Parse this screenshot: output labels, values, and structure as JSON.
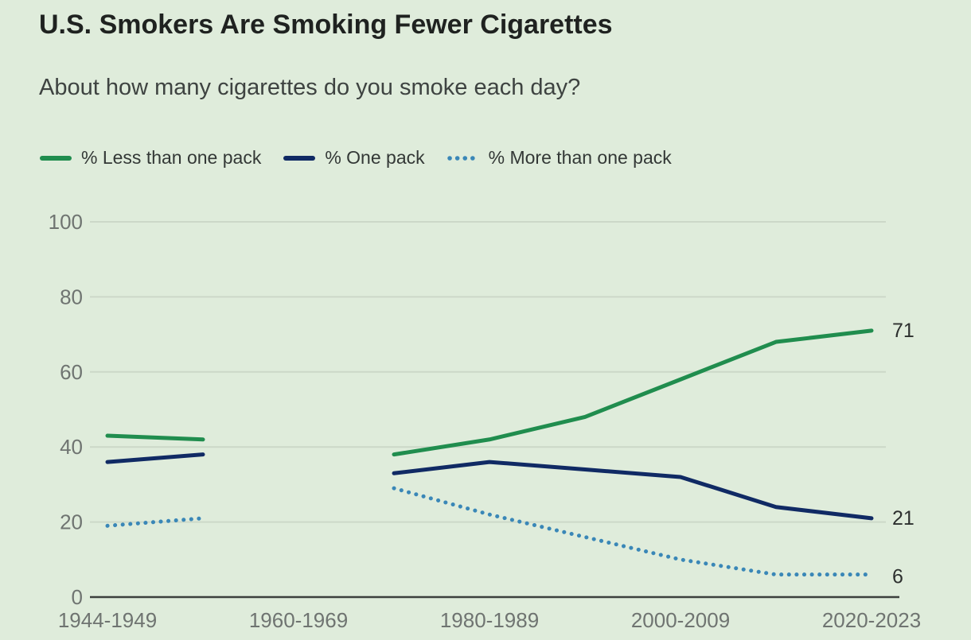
{
  "header": {
    "title": "U.S. Smokers Are Smoking Fewer Cigarettes",
    "subtitle": "About how many cigarettes do you smoke each day?"
  },
  "theme": {
    "background": "#dfecdb",
    "title_color": "#1f2220",
    "subtitle_color": "#3e4341",
    "tick_color": "#6f7471",
    "end_label_color": "#2c2f2e",
    "grid_color": "#ccd8c8",
    "axis_color": "#3c403d"
  },
  "chart_data": {
    "type": "line",
    "title": "U.S. Smokers Are Smoking Fewer Cigarettes",
    "subtitle": "About how many cigarettes do you smoke each day?",
    "grid": "horizontal-only",
    "legend_position": "top-left",
    "x_axis": {
      "tick_labels": [
        "1944-1949",
        "1960-1969",
        "1980-1989",
        "2000-2009",
        "2020-2023"
      ],
      "tick_positions": [
        0,
        2,
        4,
        6,
        8
      ]
    },
    "y_axis": {
      "ticks": [
        0,
        20,
        40,
        60,
        80,
        100
      ],
      "range": [
        0,
        100
      ]
    },
    "series": [
      {
        "label": "% Less than one pack",
        "color": "#208d4e",
        "style": "solid",
        "x": [
          0,
          1,
          3,
          4,
          5,
          6,
          7,
          8
        ],
        "values": [
          43,
          42,
          38,
          42,
          48,
          58,
          68,
          71
        ],
        "end_label": "71"
      },
      {
        "label": "% One pack",
        "color": "#102a64",
        "style": "solid",
        "x": [
          0,
          1,
          3,
          4,
          5,
          6,
          7,
          8
        ],
        "values": [
          36,
          38,
          33,
          36,
          34,
          32,
          24,
          21
        ],
        "end_label": "21"
      },
      {
        "label": "% More than one pack",
        "color": "#3a87b7",
        "style": "dotted",
        "x": [
          0,
          1,
          3,
          4,
          5,
          6,
          7,
          8
        ],
        "values": [
          19,
          21,
          29,
          22,
          16,
          10,
          6,
          6
        ],
        "end_label": "6"
      }
    ]
  }
}
